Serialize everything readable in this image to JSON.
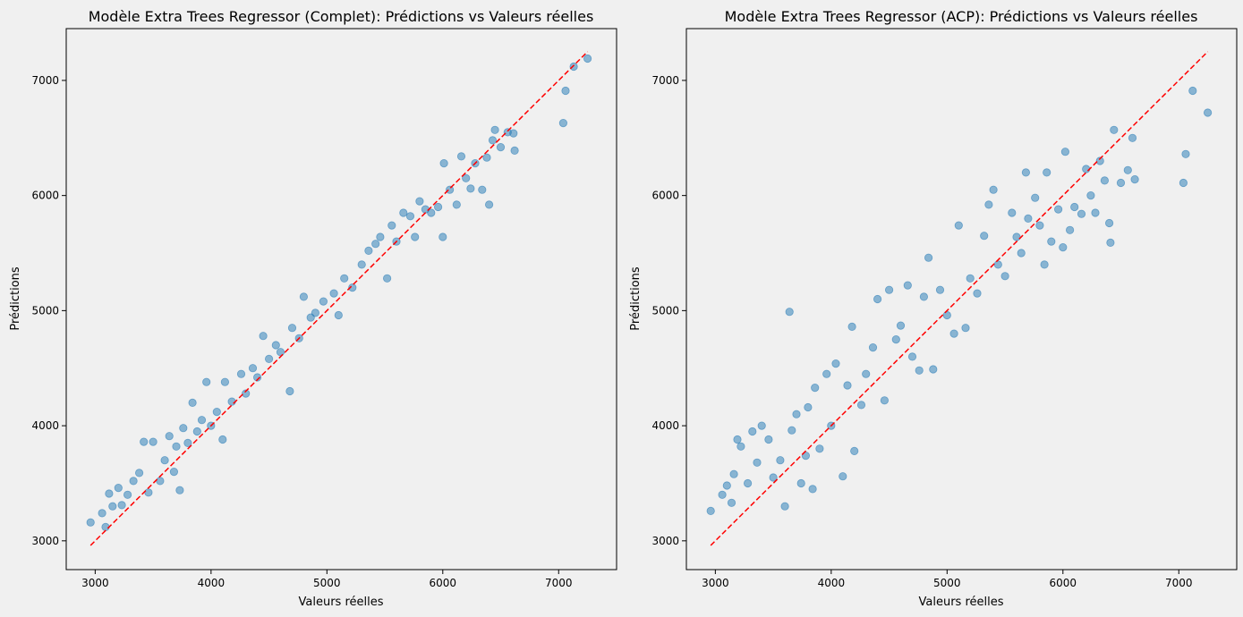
{
  "chart_data": [
    {
      "type": "scatter",
      "title": "Modèle Extra Trees Regressor (Complet): Prédictions vs Valeurs réelles",
      "xlabel": "Valeurs réelles",
      "ylabel": "Prédictions",
      "xlim": [
        2750,
        7500
      ],
      "ylim": [
        2750,
        7450
      ],
      "xticks": [
        "3000",
        "4000",
        "5000",
        "6000",
        "7000"
      ],
      "yticks": [
        "3000",
        "4000",
        "5000",
        "6000",
        "7000"
      ],
      "grid": false,
      "point_color": "#1f77b4",
      "reference_line": {
        "from": [
          2960,
          2960
        ],
        "to": [
          7250,
          7250
        ],
        "color": "#ff0000",
        "style": "dashed"
      },
      "noise_std": 140,
      "points": [
        [
          2960,
          3160
        ],
        [
          3060,
          3240
        ],
        [
          3090,
          3120
        ],
        [
          3120,
          3410
        ],
        [
          3150,
          3300
        ],
        [
          3200,
          3460
        ],
        [
          3230,
          3310
        ],
        [
          3280,
          3400
        ],
        [
          3330,
          3520
        ],
        [
          3380,
          3590
        ],
        [
          3420,
          3860
        ],
        [
          3460,
          3420
        ],
        [
          3500,
          3860
        ],
        [
          3560,
          3520
        ],
        [
          3600,
          3700
        ],
        [
          3640,
          3910
        ],
        [
          3680,
          3600
        ],
        [
          3700,
          3820
        ],
        [
          3730,
          3440
        ],
        [
          3760,
          3980
        ],
        [
          3800,
          3850
        ],
        [
          3840,
          4200
        ],
        [
          3880,
          3950
        ],
        [
          3920,
          4050
        ],
        [
          3960,
          4380
        ],
        [
          4000,
          4000
        ],
        [
          4050,
          4120
        ],
        [
          4100,
          3880
        ],
        [
          4120,
          4380
        ],
        [
          4180,
          4210
        ],
        [
          4260,
          4450
        ],
        [
          4300,
          4280
        ],
        [
          4360,
          4500
        ],
        [
          4400,
          4420
        ],
        [
          4450,
          4780
        ],
        [
          4500,
          4580
        ],
        [
          4560,
          4700
        ],
        [
          4600,
          4640
        ],
        [
          4680,
          4300
        ],
        [
          4700,
          4850
        ],
        [
          4760,
          4760
        ],
        [
          4800,
          5120
        ],
        [
          4860,
          4940
        ],
        [
          4900,
          4980
        ],
        [
          4970,
          5080
        ],
        [
          5060,
          5150
        ],
        [
          5100,
          4960
        ],
        [
          5150,
          5280
        ],
        [
          5220,
          5200
        ],
        [
          5300,
          5400
        ],
        [
          5360,
          5520
        ],
        [
          5420,
          5580
        ],
        [
          5460,
          5640
        ],
        [
          5520,
          5280
        ],
        [
          5560,
          5740
        ],
        [
          5600,
          5600
        ],
        [
          5660,
          5850
        ],
        [
          5720,
          5820
        ],
        [
          5760,
          5640
        ],
        [
          5800,
          5950
        ],
        [
          5850,
          5880
        ],
        [
          5900,
          5850
        ],
        [
          5960,
          5900
        ],
        [
          6000,
          5640
        ],
        [
          6010,
          6280
        ],
        [
          6060,
          6050
        ],
        [
          6120,
          5920
        ],
        [
          6160,
          6340
        ],
        [
          6200,
          6150
        ],
        [
          6240,
          6060
        ],
        [
          6280,
          6280
        ],
        [
          6340,
          6050
        ],
        [
          6380,
          6330
        ],
        [
          6400,
          5920
        ],
        [
          6430,
          6480
        ],
        [
          6450,
          6570
        ],
        [
          6500,
          6420
        ],
        [
          6560,
          6550
        ],
        [
          6610,
          6540
        ],
        [
          6620,
          6390
        ],
        [
          7040,
          6630
        ],
        [
          7060,
          6910
        ],
        [
          7130,
          7120
        ],
        [
          7250,
          7190
        ]
      ]
    },
    {
      "type": "scatter",
      "title": "Modèle Extra Trees Regressor (ACP): Prédictions vs Valeurs réelles",
      "xlabel": "Valeurs réelles",
      "ylabel": "Prédictions",
      "xlim": [
        2750,
        7500
      ],
      "ylim": [
        2750,
        7450
      ],
      "xticks": [
        "3000",
        "4000",
        "5000",
        "6000",
        "7000"
      ],
      "yticks": [
        "3000",
        "4000",
        "5000",
        "6000",
        "7000"
      ],
      "grid": false,
      "point_color": "#1f77b4",
      "reference_line": {
        "from": [
          2960,
          2960
        ],
        "to": [
          7250,
          7250
        ],
        "color": "#ff0000",
        "style": "dashed"
      },
      "noise_std": 300,
      "points": [
        [
          2960,
          3260
        ],
        [
          3060,
          3400
        ],
        [
          3100,
          3480
        ],
        [
          3140,
          3330
        ],
        [
          3160,
          3580
        ],
        [
          3190,
          3880
        ],
        [
          3220,
          3820
        ],
        [
          3280,
          3500
        ],
        [
          3320,
          3950
        ],
        [
          3360,
          3680
        ],
        [
          3400,
          4000
        ],
        [
          3460,
          3880
        ],
        [
          3500,
          3550
        ],
        [
          3560,
          3700
        ],
        [
          3600,
          3300
        ],
        [
          3640,
          4990
        ],
        [
          3660,
          3960
        ],
        [
          3700,
          4100
        ],
        [
          3740,
          3500
        ],
        [
          3780,
          3740
        ],
        [
          3800,
          4160
        ],
        [
          3840,
          3450
        ],
        [
          3860,
          4330
        ],
        [
          3900,
          3800
        ],
        [
          3960,
          4450
        ],
        [
          4000,
          4000
        ],
        [
          4040,
          4540
        ],
        [
          4100,
          3560
        ],
        [
          4140,
          4350
        ],
        [
          4180,
          4860
        ],
        [
          4200,
          3780
        ],
        [
          4260,
          4180
        ],
        [
          4300,
          4450
        ],
        [
          4360,
          4680
        ],
        [
          4400,
          5100
        ],
        [
          4460,
          4220
        ],
        [
          4500,
          5180
        ],
        [
          4560,
          4750
        ],
        [
          4600,
          4870
        ],
        [
          4660,
          5220
        ],
        [
          4700,
          4600
        ],
        [
          4760,
          4480
        ],
        [
          4800,
          5120
        ],
        [
          4840,
          5460
        ],
        [
          4880,
          4490
        ],
        [
          4940,
          5180
        ],
        [
          5000,
          4960
        ],
        [
          5060,
          4800
        ],
        [
          5100,
          5740
        ],
        [
          5160,
          4850
        ],
        [
          5200,
          5280
        ],
        [
          5260,
          5150
        ],
        [
          5320,
          5650
        ],
        [
          5360,
          5920
        ],
        [
          5400,
          6050
        ],
        [
          5440,
          5400
        ],
        [
          5500,
          5300
        ],
        [
          5560,
          5850
        ],
        [
          5600,
          5640
        ],
        [
          5640,
          5500
        ],
        [
          5680,
          6200
        ],
        [
          5700,
          5800
        ],
        [
          5760,
          5980
        ],
        [
          5800,
          5740
        ],
        [
          5840,
          5400
        ],
        [
          5860,
          6200
        ],
        [
          5900,
          5600
        ],
        [
          5960,
          5880
        ],
        [
          6000,
          5550
        ],
        [
          6020,
          6380
        ],
        [
          6060,
          5700
        ],
        [
          6100,
          5900
        ],
        [
          6160,
          5840
        ],
        [
          6200,
          6230
        ],
        [
          6240,
          6000
        ],
        [
          6280,
          5850
        ],
        [
          6320,
          6300
        ],
        [
          6360,
          6130
        ],
        [
          6400,
          5760
        ],
        [
          6410,
          5590
        ],
        [
          6440,
          6570
        ],
        [
          6500,
          6110
        ],
        [
          6560,
          6220
        ],
        [
          6600,
          6500
        ],
        [
          6620,
          6140
        ],
        [
          7040,
          6110
        ],
        [
          7060,
          6360
        ],
        [
          7120,
          6910
        ],
        [
          7250,
          6720
        ]
      ]
    }
  ]
}
